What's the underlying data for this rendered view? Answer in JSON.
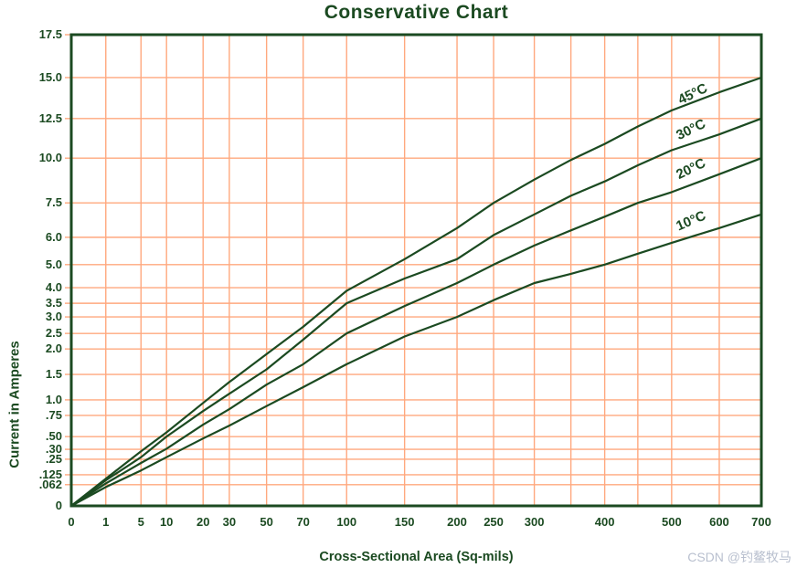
{
  "title": "Conservative Chart",
  "watermark": "CSDN @钓鳌牧马",
  "colors": {
    "ink": "#1b4a21",
    "grid": "#ffa87e",
    "watermark": "#b9c0cf",
    "background": "#ffffff"
  },
  "chart_data": {
    "type": "line",
    "title": "Conservative Chart",
    "xlabel": "Cross-Sectional Area (Sq-mils)",
    "ylabel": "Current in Amperes",
    "grid": true,
    "legend_position": "labels-on-curves-right",
    "xlim": [
      0,
      700
    ],
    "ylim": [
      0,
      17.5
    ],
    "x_axis_note": "non-linear custom scale; p = position fraction along axis",
    "x_ticks": [
      {
        "v": 0,
        "l": "0",
        "p": 0
      },
      {
        "v": 1,
        "l": "1",
        "p": 0.05
      },
      {
        "v": 5,
        "l": "5",
        "p": 0.101
      },
      {
        "v": 10,
        "l": "10",
        "p": 0.138
      },
      {
        "v": 20,
        "l": "20",
        "p": 0.191
      },
      {
        "v": 30,
        "l": "30",
        "p": 0.229
      },
      {
        "v": 50,
        "l": "50",
        "p": 0.283
      },
      {
        "v": 70,
        "l": "70",
        "p": 0.336
      },
      {
        "v": 100,
        "l": "100",
        "p": 0.399
      },
      {
        "v": 150,
        "l": "150",
        "p": 0.483
      },
      {
        "v": 200,
        "l": "200",
        "p": 0.559
      },
      {
        "v": 250,
        "l": "250",
        "p": 0.612
      },
      {
        "v": 300,
        "l": "300",
        "p": 0.671
      },
      {
        "v": 350,
        "l": "",
        "p": 0.724
      },
      {
        "v": 400,
        "l": "400",
        "p": 0.773
      },
      {
        "v": 450,
        "l": "",
        "p": 0.821
      },
      {
        "v": 500,
        "l": "500",
        "p": 0.87
      },
      {
        "v": 600,
        "l": "600",
        "p": 0.939
      },
      {
        "v": 700,
        "l": "700",
        "p": 1
      }
    ],
    "y_ticks": [
      {
        "v": 0,
        "l": "0",
        "p": 0
      },
      {
        "v": 0.062,
        "l": ".062",
        "p": 0.045
      },
      {
        "v": 0.125,
        "l": ".125",
        "p": 0.066
      },
      {
        "v": 0.25,
        "l": ".25",
        "p": 0.099
      },
      {
        "v": 0.3,
        "l": ".30",
        "p": 0.12
      },
      {
        "v": 0.5,
        "l": ".50",
        "p": 0.147
      },
      {
        "v": 0.75,
        "l": ".75",
        "p": 0.192
      },
      {
        "v": 1.0,
        "l": "1.0",
        "p": 0.225
      },
      {
        "v": 1.5,
        "l": "1.5",
        "p": 0.279
      },
      {
        "v": 2.0,
        "l": "2.0",
        "p": 0.333
      },
      {
        "v": 2.5,
        "l": "2.5",
        "p": 0.366
      },
      {
        "v": 3.0,
        "l": "3.0",
        "p": 0.401
      },
      {
        "v": 3.5,
        "l": "3.5",
        "p": 0.43
      },
      {
        "v": 4.0,
        "l": "4.0",
        "p": 0.463
      },
      {
        "v": 5.0,
        "l": "5.0",
        "p": 0.512
      },
      {
        "v": 6.0,
        "l": "6.0",
        "p": 0.57
      },
      {
        "v": 7.5,
        "l": "7.5",
        "p": 0.643
      },
      {
        "v": 10.0,
        "l": "10.0",
        "p": 0.738
      },
      {
        "v": 12.5,
        "l": "12.5",
        "p": 0.822
      },
      {
        "v": 15.0,
        "l": "15.0",
        "p": 0.909
      },
      {
        "v": 17.5,
        "l": "17.5",
        "p": 1
      }
    ],
    "x": [
      0,
      1,
      5,
      10,
      20,
      30,
      50,
      70,
      100,
      150,
      200,
      250,
      300,
      350,
      400,
      450,
      500,
      600,
      700
    ],
    "series": [
      {
        "id": "45c",
        "name": "45°C",
        "y": [
          0,
          0.1,
          0.29,
          0.55,
          0.95,
          1.35,
          1.9,
          2.7,
          3.9,
          5.2,
          6.4,
          7.5,
          8.8,
          9.9,
          10.9,
          12.0,
          13.0,
          14.1,
          15.0
        ]
      },
      {
        "id": "30c",
        "name": "30°C",
        "y": [
          0,
          0.09,
          0.26,
          0.5,
          0.82,
          1.12,
          1.6,
          2.3,
          3.5,
          4.4,
          5.2,
          6.1,
          7.0,
          7.9,
          8.7,
          9.6,
          10.5,
          11.5,
          12.5
        ]
      },
      {
        "id": "20c",
        "name": "20°C",
        "y": [
          0,
          0.07,
          0.22,
          0.31,
          0.64,
          0.85,
          1.3,
          1.7,
          2.5,
          3.4,
          4.2,
          5.0,
          5.7,
          6.3,
          6.9,
          7.5,
          8.1,
          9.1,
          10.0
        ]
      },
      {
        "id": "10c",
        "name": "10°C",
        "y": [
          0,
          0.055,
          0.16,
          0.26,
          0.47,
          0.63,
          0.9,
          1.25,
          1.7,
          2.4,
          3.0,
          3.6,
          4.2,
          4.6,
          5.0,
          5.4,
          5.8,
          6.4,
          7.0
        ]
      }
    ]
  }
}
